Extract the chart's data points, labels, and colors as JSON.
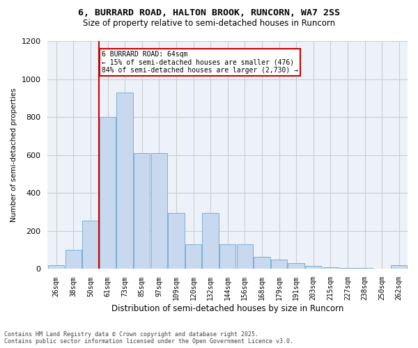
{
  "title_line1": "6, BURRARD ROAD, HALTON BROOK, RUNCORN, WA7 2SS",
  "title_line2": "Size of property relative to semi-detached houses in Runcorn",
  "xlabel": "Distribution of semi-detached houses by size in Runcorn",
  "ylabel": "Number of semi-detached properties",
  "property_label": "6 BURRARD ROAD: 64sqm",
  "pct_smaller": 15,
  "pct_larger": 84,
  "count_smaller": 476,
  "count_larger": 2730,
  "categories": [
    "26sqm",
    "38sqm",
    "50sqm",
    "61sqm",
    "73sqm",
    "85sqm",
    "97sqm",
    "109sqm",
    "120sqm",
    "132sqm",
    "144sqm",
    "156sqm",
    "168sqm",
    "179sqm",
    "191sqm",
    "203sqm",
    "215sqm",
    "227sqm",
    "238sqm",
    "250sqm",
    "262sqm"
  ],
  "values": [
    20,
    100,
    255,
    800,
    930,
    610,
    610,
    295,
    130,
    295,
    130,
    130,
    65,
    50,
    30,
    15,
    10,
    5,
    4,
    3,
    20
  ],
  "bar_color": "#c8d8ee",
  "bar_edge_color": "#7bafd4",
  "vline_color": "#cc0000",
  "annotation_box_color": "#cc0000",
  "grid_color": "#cccccc",
  "background_color": "#edf2fa",
  "ylim": [
    0,
    1200
  ],
  "yticks": [
    0,
    200,
    400,
    600,
    800,
    1000,
    1200
  ],
  "vline_index": 3,
  "footer_line1": "Contains HM Land Registry data © Crown copyright and database right 2025.",
  "footer_line2": "Contains public sector information licensed under the Open Government Licence v3.0."
}
